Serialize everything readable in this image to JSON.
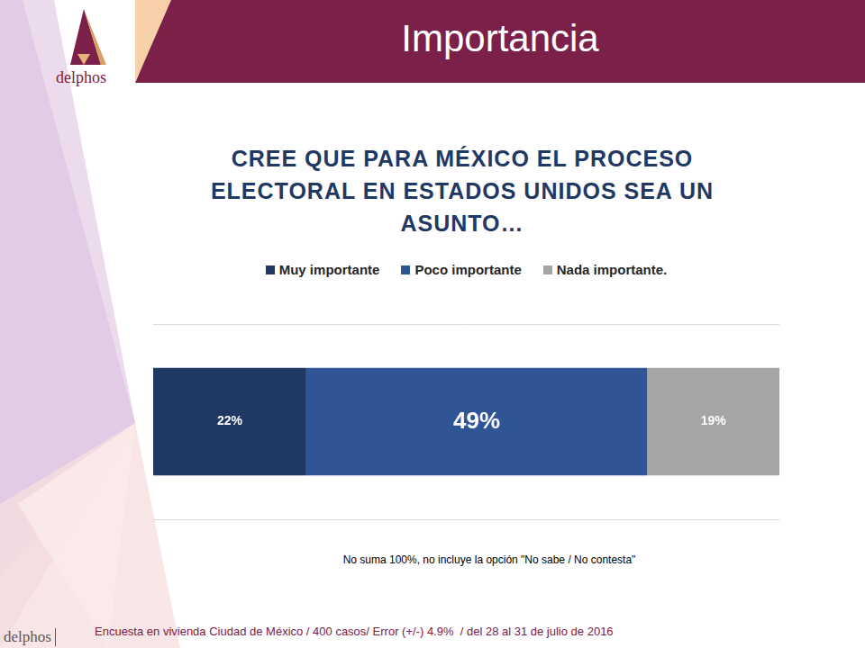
{
  "header": {
    "title": "Importancia",
    "logo": "delphos"
  },
  "chart_data": {
    "type": "bar",
    "orientation": "horizontal",
    "stacked": true,
    "title": "CREE QUE PARA MÉXICO EL PROCESO ELECTORAL EN ESTADOS UNIDOS SEA UN ASUNTO…",
    "categories": [
      null
    ],
    "series": [
      {
        "name": "Muy importante",
        "color": "#203864",
        "values": [
          22
        ],
        "value_labels": [
          "22%"
        ]
      },
      {
        "name": "Poco importante",
        "color": "#2f5597",
        "values": [
          49
        ],
        "value_labels": [
          "49%"
        ]
      },
      {
        "name": "Nada importante.",
        "color": "#a5a5a5",
        "values": [
          19
        ],
        "value_labels": [
          "19%"
        ]
      }
    ],
    "xlim": [
      0,
      90
    ],
    "data_labels": true,
    "tick_labels": false,
    "grid": true,
    "legend": "top"
  },
  "note": "No suma 100%, no incluye la opción \"No sabe / No contesta\"",
  "footer": {
    "logo": "delphos",
    "source": "Encuesta en vivienda Ciudad de México / 400 casos/ Error (+/-) 4.9%  / del 28 al 31 de julio de 2016"
  }
}
